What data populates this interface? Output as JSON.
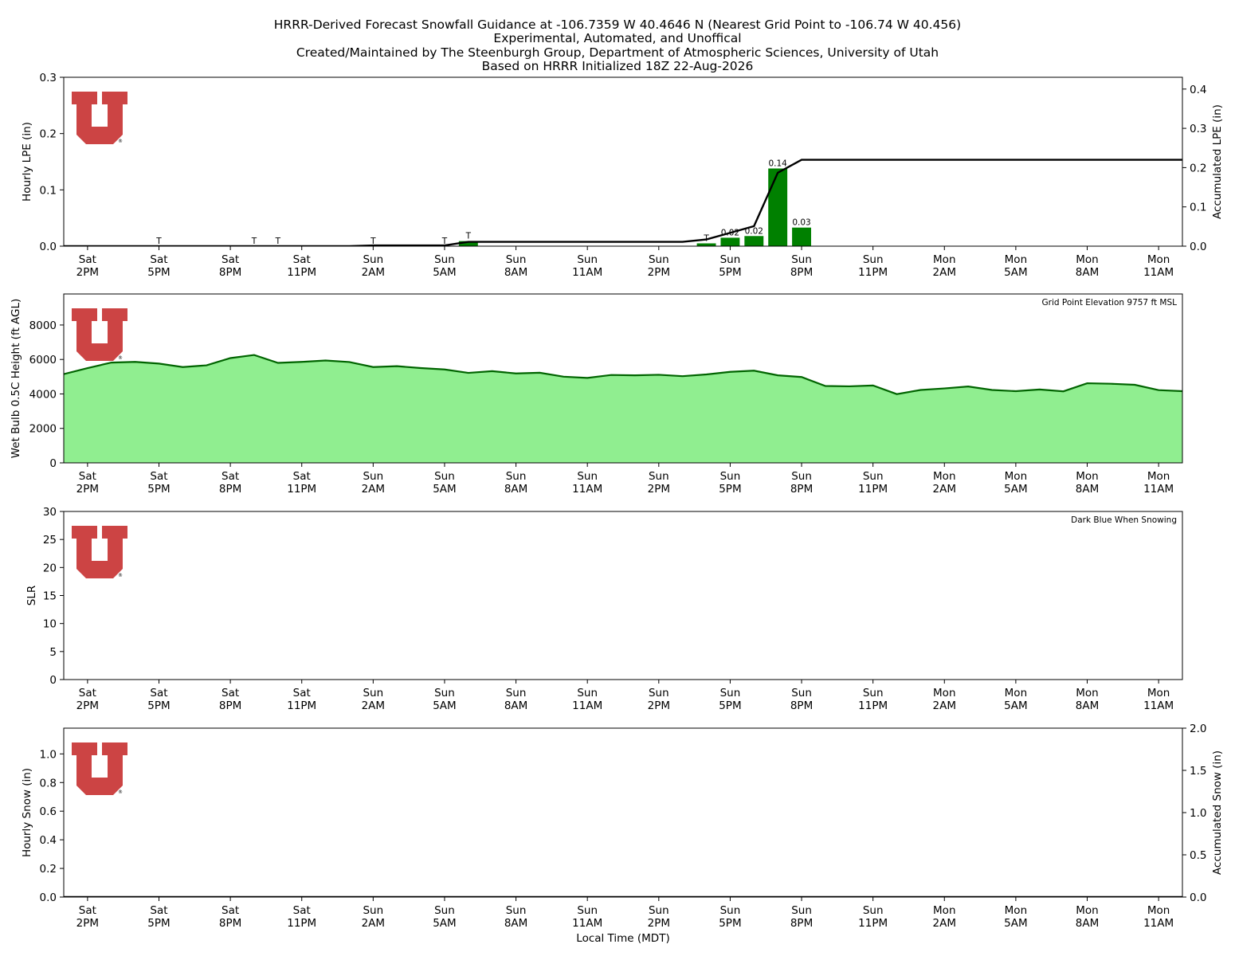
{
  "title": {
    "lines": [
      "HRRR-Derived Forecast Snowfall Guidance at -106.7359 W 40.4646 N (Nearest Grid Point to -106.74 W 40.456)",
      "Experimental, Automated, and Unoffical",
      "Created/Maintained by The Steenburgh Group, Department of Atmospheric Sciences, University of Utah",
      "Based on HRRR Initialized 18Z 22-Aug-2026"
    ]
  },
  "logo": {
    "name": "university-of-utah-u-logo",
    "color": "#cc4444"
  },
  "colors": {
    "bar": "#008000",
    "area_fill": "#90ee90",
    "area_line": "#006400",
    "accum_line": "#000000",
    "logo": "#cc4444"
  },
  "x_axis": {
    "hour_range": [
      -1,
      46
    ],
    "ticks": [
      {
        "hour": 0,
        "day": "Sat",
        "time": "2PM"
      },
      {
        "hour": 3,
        "day": "Sat",
        "time": "5PM"
      },
      {
        "hour": 6,
        "day": "Sat",
        "time": "8PM"
      },
      {
        "hour": 9,
        "day": "Sat",
        "time": "11PM"
      },
      {
        "hour": 12,
        "day": "Sun",
        "time": "2AM"
      },
      {
        "hour": 15,
        "day": "Sun",
        "time": "5AM"
      },
      {
        "hour": 18,
        "day": "Sun",
        "time": "8AM"
      },
      {
        "hour": 21,
        "day": "Sun",
        "time": "11AM"
      },
      {
        "hour": 24,
        "day": "Sun",
        "time": "2PM"
      },
      {
        "hour": 27,
        "day": "Sun",
        "time": "5PM"
      },
      {
        "hour": 30,
        "day": "Sun",
        "time": "8PM"
      },
      {
        "hour": 33,
        "day": "Sun",
        "time": "11PM"
      },
      {
        "hour": 36,
        "day": "Mon",
        "time": "2AM"
      },
      {
        "hour": 39,
        "day": "Mon",
        "time": "5AM"
      },
      {
        "hour": 42,
        "day": "Mon",
        "time": "8AM"
      },
      {
        "hour": 45,
        "day": "Mon",
        "time": "11AM"
      }
    ],
    "xlabel": "Local Time (MDT)"
  },
  "chart_data": [
    {
      "type": "bar",
      "name": "lpe-panel",
      "ylabel": "Hourly LPE (in)",
      "ylim": [
        0,
        0.3
      ],
      "yticks": [
        0.0,
        0.1,
        0.2,
        0.3
      ],
      "y2label": "Accumulated LPE (in)",
      "y2lim": [
        0,
        0.43
      ],
      "y2ticks": [
        0.0,
        0.1,
        0.2,
        0.3,
        0.4
      ],
      "bars": [
        {
          "hour": 16,
          "value": 0.009
        },
        {
          "hour": 26,
          "value": 0.005
        },
        {
          "hour": 27,
          "value": 0.015
        },
        {
          "hour": 28,
          "value": 0.018
        },
        {
          "hour": 29,
          "value": 0.138
        },
        {
          "hour": 30,
          "value": 0.033
        }
      ],
      "bar_labels": [
        {
          "hour": 3,
          "text": "T"
        },
        {
          "hour": 7,
          "text": "T"
        },
        {
          "hour": 8,
          "text": "T"
        },
        {
          "hour": 12,
          "text": "T"
        },
        {
          "hour": 15,
          "text": "T"
        },
        {
          "hour": 16,
          "text": "T"
        },
        {
          "hour": 26,
          "text": "T"
        },
        {
          "hour": 27,
          "text": "0.02"
        },
        {
          "hour": 28,
          "text": "0.02"
        },
        {
          "hour": 29,
          "text": "0.14"
        },
        {
          "hour": 30,
          "text": "0.03"
        }
      ],
      "accumulated": {
        "x": [
          -1,
          11,
          12,
          15,
          16,
          25,
          26,
          27,
          28,
          29,
          30,
          46
        ],
        "y": [
          0.0,
          0.0,
          0.002,
          0.002,
          0.011,
          0.011,
          0.017,
          0.034,
          0.051,
          0.187,
          0.22,
          0.22
        ]
      }
    },
    {
      "type": "area",
      "name": "wetbulb-panel",
      "ylabel": "Wet Bulb 0.5C Height (ft AGL)",
      "ylim": [
        0,
        9800
      ],
      "yticks": [
        0,
        2000,
        4000,
        6000,
        8000
      ],
      "annotation": "Grid Point Elevation 9757 ft MSL",
      "x": [
        -1,
        0,
        1,
        2,
        3,
        4,
        5,
        6,
        7,
        8,
        9,
        10,
        11,
        12,
        13,
        14,
        15,
        16,
        17,
        18,
        19,
        20,
        21,
        22,
        23,
        24,
        25,
        26,
        27,
        28,
        29,
        30,
        31,
        32,
        33,
        34,
        35,
        36,
        37,
        38,
        39,
        40,
        41,
        42,
        43,
        44,
        45,
        46
      ],
      "values": [
        5150,
        5500,
        5820,
        5860,
        5760,
        5560,
        5660,
        6080,
        6260,
        5800,
        5860,
        5940,
        5850,
        5560,
        5610,
        5500,
        5420,
        5220,
        5320,
        5190,
        5230,
        5000,
        4930,
        5100,
        5080,
        5110,
        5030,
        5130,
        5280,
        5350,
        5080,
        4980,
        4460,
        4440,
        4490,
        3990,
        4230,
        4320,
        4430,
        4230,
        4160,
        4260,
        4150,
        4620,
        4590,
        4530,
        4220,
        4160
      ]
    },
    {
      "type": "bar",
      "name": "slr-panel",
      "ylabel": "SLR",
      "ylim": [
        0,
        30
      ],
      "yticks": [
        0,
        5,
        10,
        15,
        20,
        25,
        30
      ],
      "annotation": "Dark Blue When Snowing",
      "bars": []
    },
    {
      "type": "bar",
      "name": "snow-panel",
      "ylabel": "Hourly Snow (in)",
      "ylim": [
        0,
        1.18
      ],
      "yticks": [
        0.0,
        0.2,
        0.4,
        0.6,
        0.8,
        1.0
      ],
      "y2label": "Accumulated Snow (in)",
      "y2lim": [
        0,
        2.0
      ],
      "y2ticks": [
        0.0,
        0.5,
        1.0,
        1.5,
        2.0
      ],
      "bars": [],
      "accumulated": {
        "x": [
          -1,
          46
        ],
        "y": [
          0,
          0
        ]
      }
    }
  ]
}
